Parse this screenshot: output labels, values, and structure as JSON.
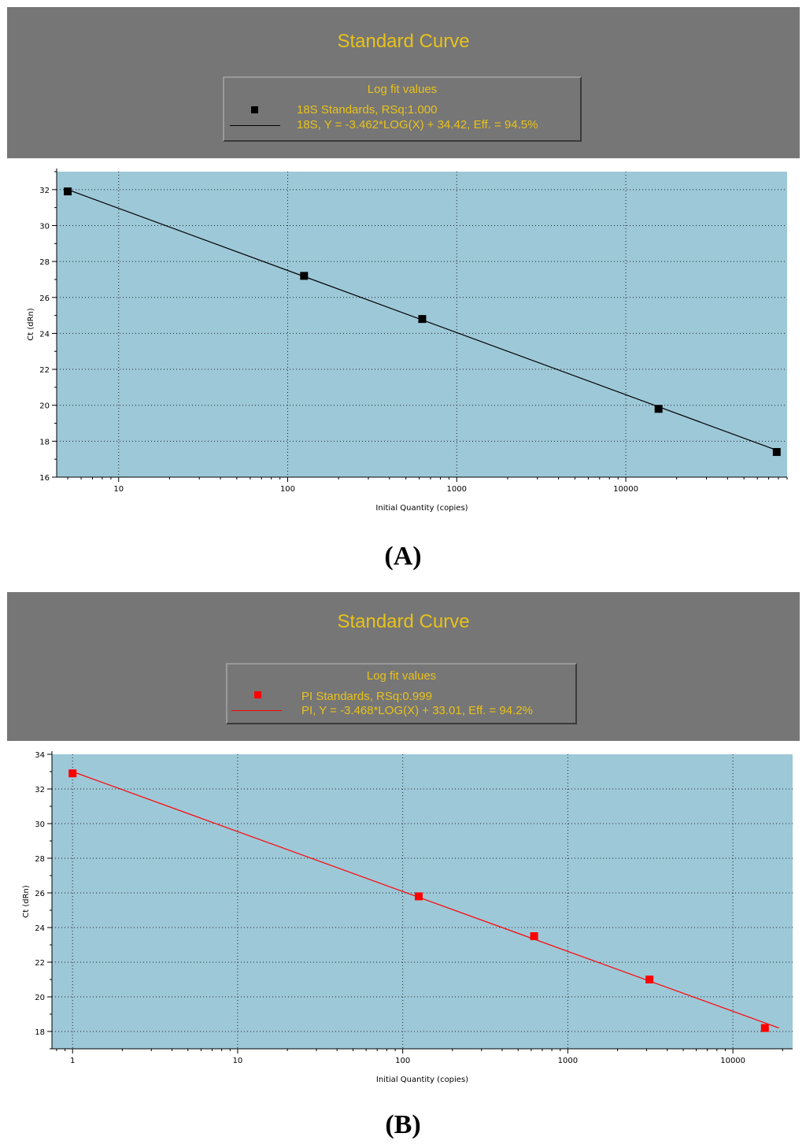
{
  "chart_data": [
    {
      "type": "scatter",
      "title": "Standard Curve",
      "legend_title": "Log fit values",
      "legend_placement": "top-center",
      "xlabel": "Initial Quantity (copies)",
      "ylabel": "Ct (dRn)",
      "x_scale": "log",
      "xlim": [
        4.3,
        90000
      ],
      "ylim": [
        16,
        33
      ],
      "x_ticks": [
        10,
        100,
        1000,
        10000
      ],
      "x_tick_labels": [
        "10",
        "100",
        "1000",
        "10000"
      ],
      "y_ticks": [
        16,
        18,
        20,
        22,
        24,
        26,
        28,
        30,
        32
      ],
      "y_tick_labels": [
        "16",
        "18",
        "20",
        "22",
        "24",
        "26",
        "28",
        "30",
        "32"
      ],
      "grid": true,
      "background_color": "#9dc8d8",
      "series": [
        {
          "name": "18S Standards, RSq:1.000",
          "type": "scatter",
          "color": "#000000",
          "x": [
            5,
            125,
            625,
            15625,
            78125
          ],
          "y": [
            31.9,
            27.2,
            24.8,
            19.8,
            17.4
          ]
        },
        {
          "name": "18S, Y = -3.462*LOG(X) + 34.42, Eff. = 94.5%",
          "type": "line",
          "color": "#000000",
          "x": [
            5,
            78125
          ],
          "y": [
            32.0,
            17.5
          ]
        }
      ]
    },
    {
      "type": "scatter",
      "title": "Standard Curve",
      "legend_title": "Log fit values",
      "legend_placement": "top-center",
      "xlabel": "Initial Quantity (copies)",
      "ylabel": "Ct (dRn)",
      "x_scale": "log",
      "xlim": [
        0.75,
        23000
      ],
      "ylim": [
        17,
        34
      ],
      "x_ticks": [
        1,
        10,
        100,
        1000,
        10000
      ],
      "x_tick_labels": [
        "1",
        "10",
        "100",
        "1000",
        "10000"
      ],
      "y_ticks": [
        18,
        20,
        22,
        24,
        26,
        28,
        30,
        32,
        34
      ],
      "y_tick_labels": [
        "18",
        "20",
        "22",
        "24",
        "26",
        "28",
        "30",
        "32",
        "34"
      ],
      "grid": true,
      "background_color": "#9dc8d8",
      "series": [
        {
          "name": "PI Standards, RSq:0.999",
          "type": "scatter",
          "color": "#ff0000",
          "x": [
            1,
            125,
            625,
            3125,
            15625
          ],
          "y": [
            32.9,
            25.8,
            23.5,
            21.0,
            18.2
          ]
        },
        {
          "name": "PI, Y = -3.468*LOG(X) + 33.01, Eff. = 94.2%",
          "type": "line",
          "color": "#ff0000",
          "x": [
            1,
            19000
          ],
          "y": [
            33.0,
            18.2
          ]
        }
      ]
    }
  ],
  "captions": [
    "(A)",
    "(B)"
  ]
}
